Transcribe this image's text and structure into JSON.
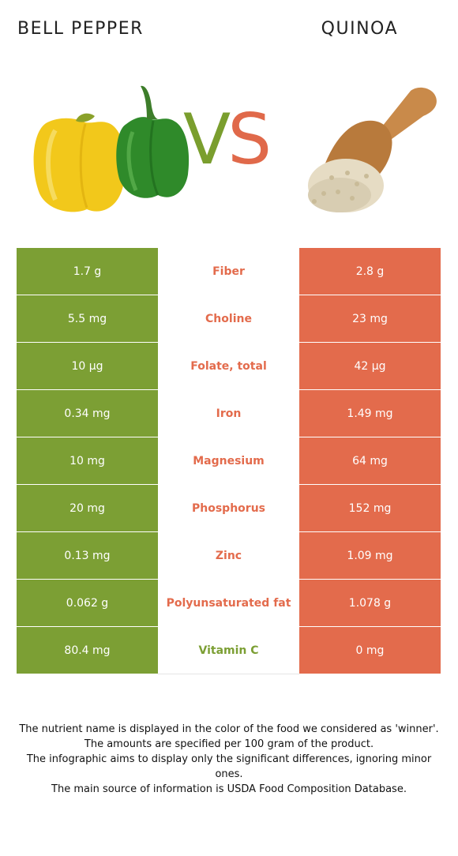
{
  "left_food": {
    "name": "BELL PEPPER",
    "color": "#7c9f34"
  },
  "right_food": {
    "name": "QUINOA",
    "color": "#e36b4c"
  },
  "vs": {
    "v": "V",
    "s": "S"
  },
  "rows": [
    {
      "nutrient": "Fiber",
      "left": "1.7 g",
      "right": "2.8 g",
      "winner": "right"
    },
    {
      "nutrient": "Choline",
      "left": "5.5 mg",
      "right": "23 mg",
      "winner": "right"
    },
    {
      "nutrient": "Folate, total",
      "left": "10 µg",
      "right": "42 µg",
      "winner": "right"
    },
    {
      "nutrient": "Iron",
      "left": "0.34 mg",
      "right": "1.49 mg",
      "winner": "right"
    },
    {
      "nutrient": "Magnesium",
      "left": "10 mg",
      "right": "64 mg",
      "winner": "right"
    },
    {
      "nutrient": "Phosphorus",
      "left": "20 mg",
      "right": "152 mg",
      "winner": "right"
    },
    {
      "nutrient": "Zinc",
      "left": "0.13 mg",
      "right": "1.09 mg",
      "winner": "right"
    },
    {
      "nutrient": "Polyunsaturated fat",
      "left": "0.062 g",
      "right": "1.078 g",
      "winner": "right"
    },
    {
      "nutrient": "Vitamin C",
      "left": "80.4 mg",
      "right": "0 mg",
      "winner": "left"
    }
  ],
  "footnotes": [
    "The nutrient name is displayed in the color of the food we considered as 'winner'.",
    "The amounts are specified per 100 gram of the product.",
    "The infographic aims to display only the significant differences, ignoring minor ones.",
    "The main source of information is USDA Food Composition Database."
  ]
}
